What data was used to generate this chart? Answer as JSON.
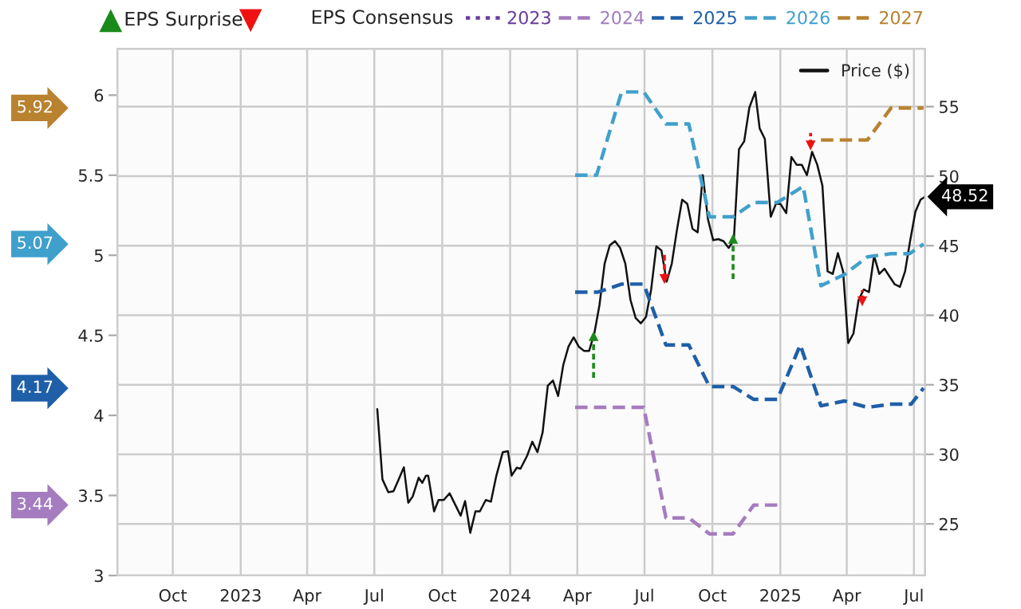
{
  "chart_data": {
    "type": "line",
    "legend_title": "EPS Consensus",
    "annotations": [
      "5.92",
      "5.07",
      "4.17",
      "3.44"
    ],
    "legend": "top",
    "grid": true,
    "xlim": [
      "2022-07-18",
      "2025-07-16"
    ],
    "xticks": [
      {
        "value": "2022-10-01",
        "label": "Oct"
      },
      {
        "value": "2023-01-01",
        "label": "2023"
      },
      {
        "value": "2023-04-01",
        "label": "Apr"
      },
      {
        "value": "2023-07-01",
        "label": "Jul"
      },
      {
        "value": "2023-10-01",
        "label": "Oct"
      },
      {
        "value": "2024-01-01",
        "label": "2024"
      },
      {
        "value": "2024-04-01",
        "label": "Apr"
      },
      {
        "value": "2024-07-01",
        "label": "Jul"
      },
      {
        "value": "2024-10-01",
        "label": "Oct"
      },
      {
        "value": "2025-01-01",
        "label": "2025"
      },
      {
        "value": "2025-04-01",
        "label": "Apr"
      },
      {
        "value": "2025-07-01",
        "label": "Jul"
      }
    ],
    "ylim": [
      3,
      6.29
    ],
    "yticks": [
      3,
      3.5,
      4,
      4.5,
      5,
      5.5,
      6
    ],
    "y2lim": [
      21.29,
      59.16
    ],
    "y2ticks": [
      25,
      30,
      35,
      40,
      45,
      50,
      55
    ],
    "series": [
      {
        "name": "EPS Surprise",
        "type": "scatter",
        "axis": "y2",
        "marker": "triangle",
        "color": "#1a8a1a",
        "x": [
          "2024-04-23",
          "2024-10-29"
        ],
        "values": [
          38.5,
          45.5
        ],
        "errors": [
          [
            35.5,
            38.5
          ],
          [
            42.6,
            45.5
          ]
        ]
      },
      {
        "type": "scatter",
        "axis": "y2",
        "marker": "triangle",
        "color": "#ee1111",
        "x": [
          "2024-07-28",
          "2025-02-11",
          "2025-04-22"
        ],
        "values": [
          42.6,
          52.2,
          41.0
        ],
        "errors": [
          [
            42.6,
            44.5
          ],
          [
            52.2,
            53.1
          ],
          [
            41.0,
            41.8
          ]
        ]
      },
      {
        "name": "2023",
        "axis": "y",
        "line_style": "dotted",
        "color": "#6a3d9a"
      },
      {
        "name": "2024",
        "axis": "y",
        "line_style": "dashed",
        "color": "#a57cbf",
        "x": [
          "2024-03-29",
          "2024-06-30",
          "2024-07-30",
          "2024-08-30",
          "2024-09-27",
          "2024-10-29",
          "2024-11-26",
          "2024-12-28"
        ],
        "values": [
          4.05,
          4.05,
          3.36,
          3.36,
          3.26,
          3.26,
          3.44,
          3.44
        ]
      },
      {
        "name": "2025",
        "axis": "y",
        "line_style": "dashed",
        "color": "#1f5fa8",
        "x": [
          "2024-03-29",
          "2024-04-29",
          "2024-05-31",
          "2024-06-30",
          "2024-07-30",
          "2024-08-30",
          "2024-09-27",
          "2024-10-29",
          "2024-11-26",
          "2024-12-28",
          "2025-01-28",
          "2025-02-25",
          "2025-03-29",
          "2025-04-29",
          "2025-05-31",
          "2025-06-27",
          "2025-07-14"
        ],
        "values": [
          4.77,
          4.77,
          4.82,
          4.82,
          4.44,
          4.44,
          4.18,
          4.18,
          4.1,
          4.1,
          4.44,
          4.06,
          4.09,
          4.05,
          4.07,
          4.07,
          4.17
        ]
      },
      {
        "name": "2026",
        "axis": "y",
        "line_style": "dashed",
        "color": "#40a0cc",
        "x": [
          "2024-03-29",
          "2024-04-27",
          "2024-05-31",
          "2024-06-30",
          "2024-07-30",
          "2024-08-30",
          "2024-09-27",
          "2024-10-29",
          "2024-11-26",
          "2024-12-28",
          "2025-02-01",
          "2025-02-25",
          "2025-03-29",
          "2025-04-29",
          "2025-05-31",
          "2025-06-25",
          "2025-07-14"
        ],
        "values": [
          5.5,
          5.5,
          6.02,
          6.02,
          5.82,
          5.82,
          5.24,
          5.24,
          5.33,
          5.33,
          5.43,
          4.81,
          4.88,
          4.99,
          5.01,
          5.01,
          5.07
        ]
      },
      {
        "name": "2027",
        "axis": "y",
        "line_style": "dashed",
        "color": "#b8822f",
        "x": [
          "2025-02-25",
          "2025-04-29",
          "2025-05-31",
          "2025-07-14"
        ],
        "values": [
          5.72,
          5.72,
          5.92,
          5.92
        ]
      },
      {
        "name": "Price ($)",
        "axis": "y2",
        "line_style": "solid",
        "color": "#111111",
        "x": [
          "2023-07-05",
          "2023-07-12",
          "2023-07-20",
          "2023-07-27",
          "2023-08-03",
          "2023-08-10",
          "2023-08-16",
          "2023-08-22",
          "2023-08-30",
          "2023-09-04",
          "2023-09-09",
          "2023-09-12",
          "2023-09-20",
          "2023-09-26",
          "2023-10-03",
          "2023-10-11",
          "2023-10-19",
          "2023-10-26",
          "2023-11-01",
          "2023-11-08",
          "2023-11-15",
          "2023-11-21",
          "2023-11-29",
          "2023-12-06",
          "2023-12-13",
          "2023-12-22",
          "2023-12-29",
          "2024-01-03",
          "2024-01-10",
          "2024-01-15",
          "2024-01-24",
          "2024-01-31",
          "2024-02-07",
          "2024-02-14",
          "2024-02-21",
          "2024-02-28",
          "2024-03-06",
          "2024-03-13",
          "2024-03-20",
          "2024-03-27",
          "2024-04-03",
          "2024-04-10",
          "2024-04-17",
          "2024-04-24",
          "2024-05-01",
          "2024-05-08",
          "2024-05-15",
          "2024-05-22",
          "2024-05-29",
          "2024-06-05",
          "2024-06-12",
          "2024-06-19",
          "2024-06-26",
          "2024-07-03",
          "2024-07-10",
          "2024-07-17",
          "2024-07-24",
          "2024-07-31",
          "2024-08-07",
          "2024-08-14",
          "2024-08-21",
          "2024-08-28",
          "2024-09-04",
          "2024-09-11",
          "2024-09-18",
          "2024-09-25",
          "2024-10-02",
          "2024-10-09",
          "2024-10-16",
          "2024-10-23",
          "2024-10-30",
          "2024-11-06",
          "2024-11-13",
          "2024-11-20",
          "2024-11-28",
          "2024-12-04",
          "2024-12-11",
          "2024-12-19",
          "2024-12-26",
          "2025-01-01",
          "2025-01-09",
          "2025-01-16",
          "2025-01-23",
          "2025-01-30",
          "2025-02-06",
          "2025-02-13",
          "2025-02-20",
          "2025-02-27",
          "2025-03-06",
          "2025-03-13",
          "2025-03-20",
          "2025-03-27",
          "2025-04-03",
          "2025-04-10",
          "2025-04-17",
          "2025-04-24",
          "2025-05-01",
          "2025-05-08",
          "2025-05-15",
          "2025-05-22",
          "2025-05-29",
          "2025-06-05",
          "2025-06-12",
          "2025-06-19",
          "2025-06-26",
          "2025-07-03",
          "2025-07-10",
          "2025-07-16"
        ],
        "values": [
          33.25,
          28.2,
          27.28,
          27.35,
          28.2,
          29.07,
          26.52,
          26.97,
          28.32,
          27.95,
          28.47,
          28.47,
          25.9,
          26.72,
          26.72,
          27.2,
          26.34,
          25.59,
          26.64,
          24.36,
          25.9,
          25.9,
          26.72,
          26.6,
          28.4,
          30.16,
          30.23,
          28.47,
          29.04,
          28.97,
          29.9,
          30.91,
          30.16,
          31.58,
          34.94,
          35.31,
          34.19,
          36.43,
          37.74,
          38.41,
          37.74,
          37.44,
          37.44,
          38.68,
          40.73,
          43.72,
          45.03,
          45.33,
          44.84,
          43.72,
          41.1,
          39.8,
          39.42,
          39.87,
          41.85,
          44.95,
          44.65,
          42.41,
          43.72,
          46.15,
          48.31,
          48.01,
          46.22,
          45.96,
          50.07,
          46.89,
          45.4,
          45.47,
          45.33,
          44.84,
          45.4,
          51.94,
          52.5,
          54.93,
          56.05,
          53.43,
          52.68,
          47.08,
          48.01,
          48.01,
          47.34,
          51.38,
          50.82,
          50.82,
          50.07,
          51.75,
          50.82,
          49.32,
          43.16,
          42.97,
          44.47,
          43.16,
          38.0,
          38.68,
          41.1,
          41.85,
          41.66,
          44.28,
          42.97,
          43.35,
          42.78,
          42.22,
          42.04,
          43.16,
          45.4,
          47.45,
          48.31,
          48.52
        ],
        "value_labels": [
          null,
          null,
          null,
          null,
          null,
          null,
          null,
          null,
          null,
          null,
          null,
          null,
          null,
          null,
          null,
          null,
          null,
          null,
          null,
          null,
          null,
          null,
          null,
          null,
          null,
          null,
          null,
          null,
          null,
          null,
          null,
          null,
          null,
          null,
          null,
          null,
          null,
          null,
          null,
          null,
          null,
          null,
          null,
          null,
          null,
          null,
          null,
          null,
          null,
          null,
          null,
          null,
          null,
          null,
          null,
          null,
          null,
          null,
          null,
          null,
          null,
          null,
          null,
          null,
          null,
          null,
          null,
          null,
          null,
          null,
          null,
          null,
          null,
          null,
          null,
          null,
          null,
          null,
          null,
          null,
          null,
          null,
          null,
          null,
          null,
          null,
          null,
          null,
          null,
          null,
          null,
          null,
          null,
          null,
          null,
          null,
          null,
          null,
          null,
          null,
          null,
          null,
          null,
          null,
          null,
          null,
          null,
          "48.52"
        ]
      }
    ]
  }
}
